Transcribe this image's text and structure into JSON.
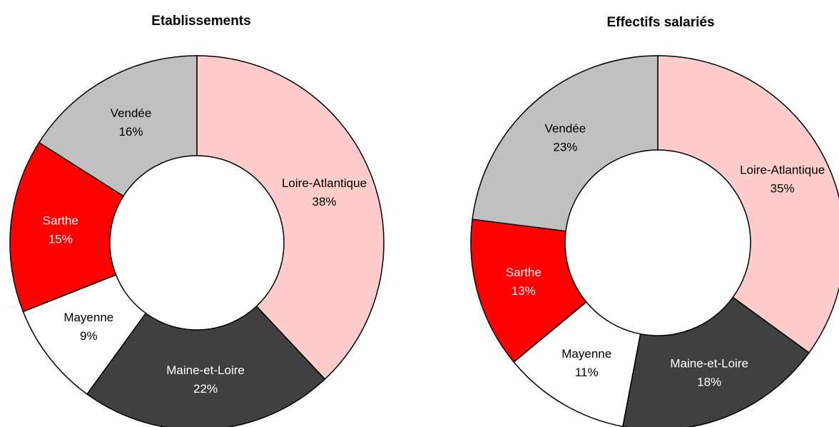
{
  "chart_data": [
    {
      "type": "donut",
      "title": "Etablissements",
      "categories": [
        "Loire-Atlantique",
        "Maine-et-Loire",
        "Mayenne",
        "Sarthe",
        "Vendée"
      ],
      "values": [
        38,
        22,
        9,
        15,
        16
      ],
      "value_labels": [
        "38%",
        "22%",
        "9%",
        "15%",
        "16%"
      ],
      "colors": [
        "#ffcccc",
        "#404040",
        "#ffffff",
        "#ff0000",
        "#c0c0c0"
      ]
    },
    {
      "type": "donut",
      "title": "Effectifs salariés",
      "categories": [
        "Loire-Atlantique",
        "Maine-et-Loire",
        "Mayenne",
        "Sarthe",
        "Vendée"
      ],
      "values": [
        35,
        18,
        11,
        13,
        23
      ],
      "value_labels": [
        "35%",
        "18%",
        "11%",
        "13%",
        "23%"
      ],
      "colors": [
        "#ffcccc",
        "#404040",
        "#ffffff",
        "#ff0000",
        "#c0c0c0"
      ]
    }
  ]
}
